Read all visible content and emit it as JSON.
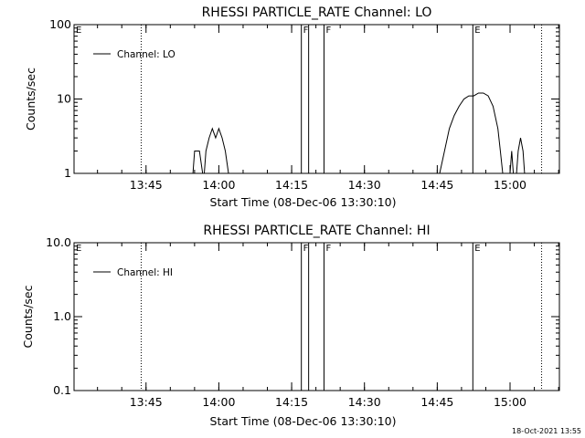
{
  "footer_stamp": "18-Oct-2021 13:55",
  "chart_data": [
    {
      "type": "line",
      "title": "RHESSI PARTICLE_RATE Channel: LO",
      "xlabel": "Start Time (08-Dec-06 13:30:10)",
      "ylabel": "Counts/sec",
      "yscale": "log",
      "xlim": [
        "13:30:10",
        "15:10:10"
      ],
      "ylim": [
        1,
        100
      ],
      "x_ticks": [
        "13:45",
        "14:00",
        "14:15",
        "14:30",
        "14:45",
        "15:00"
      ],
      "y_ticks": [
        "1",
        "10",
        "100"
      ],
      "legend": [
        "Channel: LO"
      ],
      "legend_position": "top-left",
      "markers": [
        {
          "label": "E",
          "time": "13:30:10",
          "style": "none"
        },
        {
          "label": "",
          "time": "13:44:00",
          "style": "dotted"
        },
        {
          "label": "F",
          "time": "14:17:00",
          "style": "solid"
        },
        {
          "label": "",
          "time": "14:18:30",
          "style": "solid"
        },
        {
          "label": "F",
          "time": "14:21:40",
          "style": "solid"
        },
        {
          "label": "E",
          "time": "14:52:20",
          "style": "solid"
        },
        {
          "label": "",
          "time": "15:06:30",
          "style": "dotted"
        }
      ],
      "series": [
        {
          "name": "Channel: LO",
          "segments": [
            [
              [
                "13:54:40",
                1.0
              ],
              [
                "13:55:00",
                2.0
              ],
              [
                "13:56:00",
                2.0
              ],
              [
                "13:56:40",
                1.0
              ]
            ],
            [
              [
                "13:57:00",
                1.0
              ],
              [
                "13:57:20",
                2.0
              ],
              [
                "13:58:00",
                3.0
              ],
              [
                "13:58:40",
                4.0
              ],
              [
                "13:59:20",
                3.0
              ],
              [
                "14:00:00",
                4.0
              ],
              [
                "14:00:40",
                3.0
              ],
              [
                "14:01:20",
                2.0
              ],
              [
                "14:02:00",
                1.0
              ]
            ],
            [
              [
                "14:45:30",
                1.0
              ],
              [
                "14:46:30",
                2.0
              ],
              [
                "14:47:30",
                4.0
              ],
              [
                "14:48:30",
                6.0
              ],
              [
                "14:49:30",
                8.0
              ],
              [
                "14:50:30",
                10.0
              ],
              [
                "14:51:30",
                11.0
              ],
              [
                "14:52:30",
                11.0
              ],
              [
                "14:53:30",
                12.0
              ],
              [
                "14:54:30",
                12.0
              ],
              [
                "14:55:30",
                11.0
              ],
              [
                "14:56:30",
                8.0
              ],
              [
                "14:57:30",
                4.0
              ],
              [
                "14:58:00",
                2.0
              ],
              [
                "14:58:30",
                1.0
              ]
            ],
            [
              [
                "15:00:00",
                1.0
              ],
              [
                "15:00:20",
                2.0
              ],
              [
                "15:00:40",
                1.0
              ]
            ],
            [
              [
                "15:01:20",
                1.0
              ],
              [
                "15:01:40",
                2.0
              ],
              [
                "15:02:10",
                3.0
              ],
              [
                "15:02:40",
                2.0
              ],
              [
                "15:03:00",
                1.0
              ]
            ]
          ]
        }
      ]
    },
    {
      "type": "line",
      "title": "RHESSI PARTICLE_RATE Channel: HI",
      "xlabel": "Start Time (08-Dec-06 13:30:10)",
      "ylabel": "Counts/sec",
      "yscale": "log",
      "xlim": [
        "13:30:10",
        "15:10:10"
      ],
      "ylim": [
        0.1,
        10
      ],
      "x_ticks": [
        "13:45",
        "14:00",
        "14:15",
        "14:30",
        "14:45",
        "15:00"
      ],
      "y_ticks": [
        "0.1",
        "1.0",
        "10.0"
      ],
      "legend": [
        "Channel: HI"
      ],
      "legend_position": "top-left",
      "markers": [
        {
          "label": "E",
          "time": "13:30:10",
          "style": "none"
        },
        {
          "label": "",
          "time": "13:44:00",
          "style": "dotted"
        },
        {
          "label": "F",
          "time": "14:17:00",
          "style": "solid"
        },
        {
          "label": "",
          "time": "14:18:30",
          "style": "solid"
        },
        {
          "label": "F",
          "time": "14:21:40",
          "style": "solid"
        },
        {
          "label": "E",
          "time": "14:52:20",
          "style": "solid"
        },
        {
          "label": "",
          "time": "15:06:30",
          "style": "dotted"
        }
      ],
      "series": [
        {
          "name": "Channel: HI",
          "segments": []
        }
      ]
    }
  ]
}
